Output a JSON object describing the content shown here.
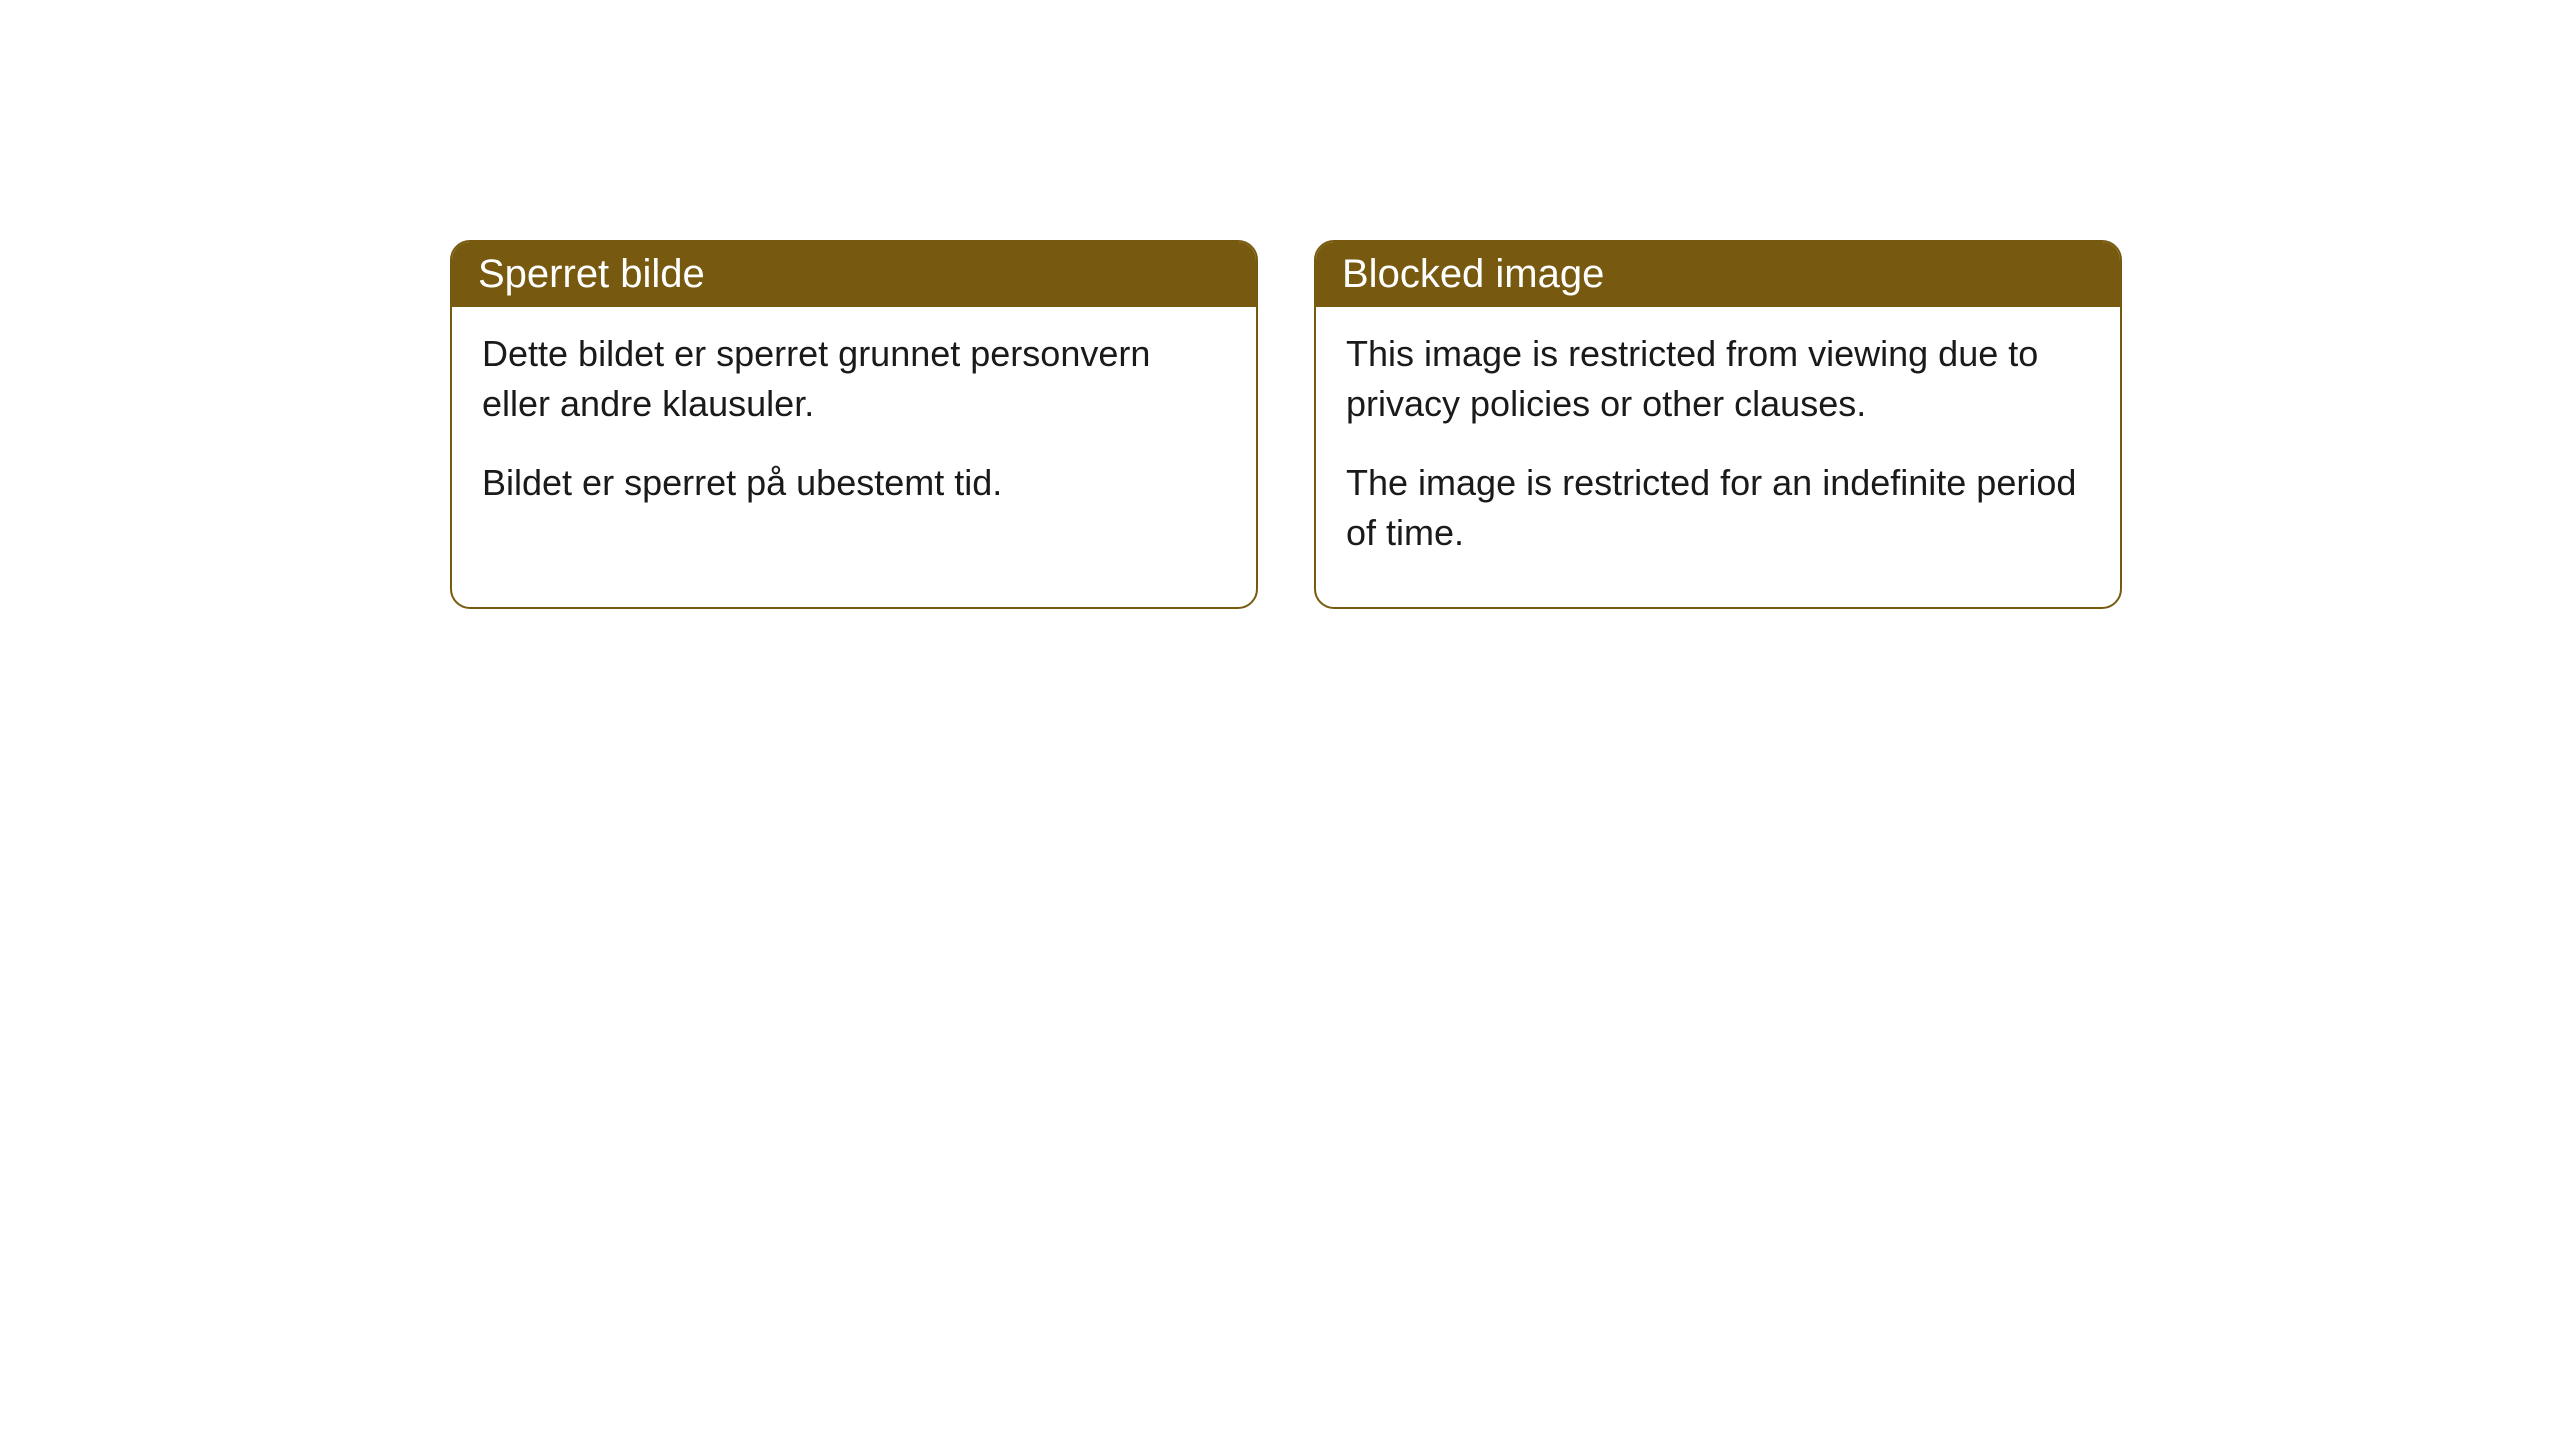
{
  "colors": {
    "header_bg": "#775a10",
    "header_text": "#ffffff",
    "border": "#775a10",
    "body_bg": "#ffffff",
    "body_text": "#1a1a1a"
  },
  "cards": [
    {
      "title": "Sperret bilde",
      "paragraphs": [
        "Dette bildet er sperret grunnet personvern eller andre klausuler.",
        "Bildet er sperret på ubestemt tid."
      ]
    },
    {
      "title": "Blocked image",
      "paragraphs": [
        "This image is restricted from viewing due to privacy policies or other clauses.",
        "The image is restricted for an indefinite period of time."
      ]
    }
  ]
}
